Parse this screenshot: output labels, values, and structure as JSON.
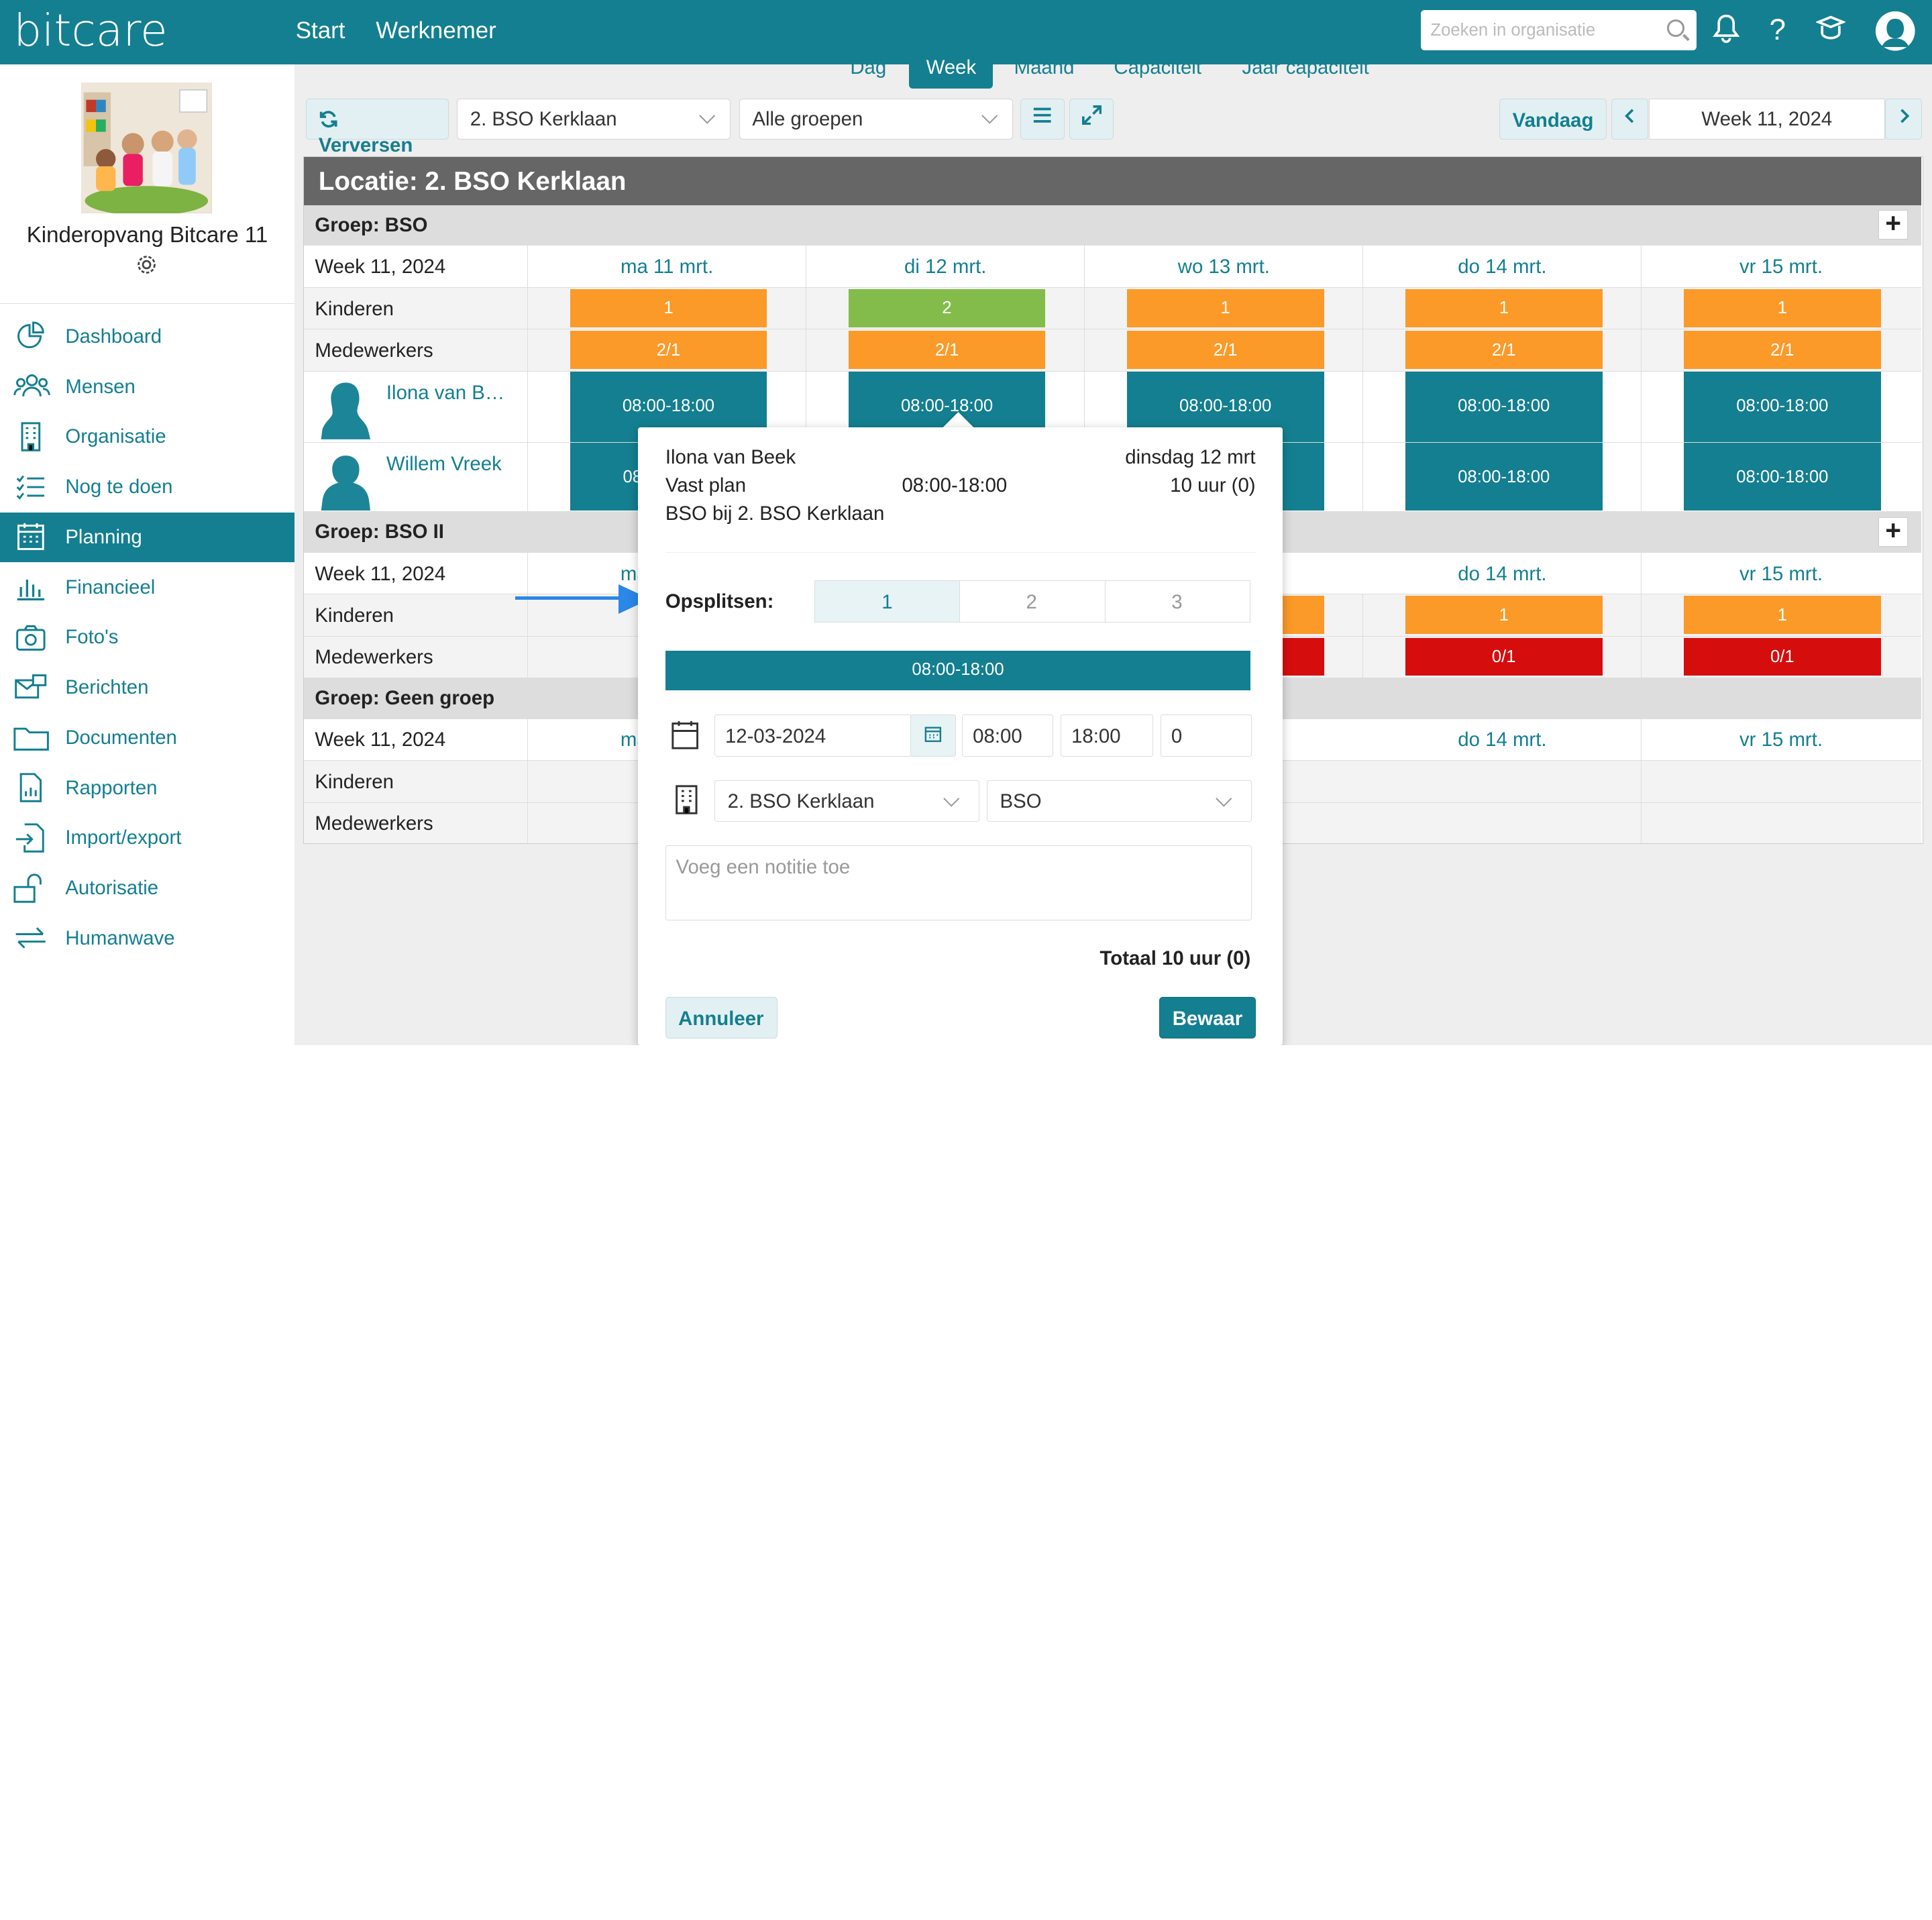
{
  "app": {
    "logo": "bitcare"
  },
  "topnav": {
    "start": "Start",
    "werknemer": "Werknemer",
    "search_placeholder": "Zoeken in organisatie",
    "help": "?"
  },
  "sidebar": {
    "org_name": "Kinderopvang Bitcare 11",
    "items": [
      {
        "label": "Dashboard",
        "icon": "pie-chart-icon"
      },
      {
        "label": "Mensen",
        "icon": "people-icon"
      },
      {
        "label": "Organisatie",
        "icon": "building-icon"
      },
      {
        "label": "Nog te doen",
        "icon": "checklist-icon"
      },
      {
        "label": "Planning",
        "icon": "calendar-icon",
        "active": true
      },
      {
        "label": "Financieel",
        "icon": "bar-chart-icon"
      },
      {
        "label": "Foto's",
        "icon": "camera-icon"
      },
      {
        "label": "Berichten",
        "icon": "messages-icon"
      },
      {
        "label": "Documenten",
        "icon": "folder-icon"
      },
      {
        "label": "Rapporten",
        "icon": "report-icon"
      },
      {
        "label": "Import/export",
        "icon": "import-icon"
      },
      {
        "label": "Autorisatie",
        "icon": "lock-icon"
      },
      {
        "label": "Humanwave",
        "icon": "swap-icon"
      }
    ]
  },
  "view_tabs": [
    "Dag",
    "Week",
    "Maand",
    "Capaciteit",
    "Jaar capaciteit"
  ],
  "toolbar": {
    "refresh": "Verversen",
    "location": "2. BSO Kerklaan",
    "groups": "Alle groepen",
    "today": "Vandaag",
    "week": "Week 11, 2024"
  },
  "grid": {
    "location_title": "Locatie: 2. BSO Kerklaan",
    "week_label": "Week 11, 2024",
    "days": [
      "ma 11 mrt.",
      "di 12 mrt.",
      "wo 13 mrt.",
      "do 14 mrt.",
      "vr 15 mrt."
    ],
    "row_kinderen": "Kinderen",
    "row_medewerkers": "Medewerkers",
    "groups": [
      {
        "title": "Groep: BSO",
        "kinderen": [
          "1",
          "2",
          "1",
          "1",
          "1"
        ],
        "medewerkers": [
          "2/1",
          "2/1",
          "2/1",
          "2/1",
          "2/1"
        ],
        "employees": [
          {
            "name": "Ilona van B…",
            "shifts": [
              "08:00-18:00",
              "08:00-18:00",
              "08:00-18:00",
              "08:00-18:00",
              "08:00-18:00"
            ]
          },
          {
            "name": "Willem Vreek",
            "shifts": [
              "08",
              "",
              "",
              "08:00-18:00",
              "08:00-18:00"
            ]
          }
        ]
      },
      {
        "title": "Groep: BSO II",
        "day_short": "ma",
        "kinderen": [
          "1",
          "1"
        ],
        "medewerkers": [
          "0/1",
          "0/1"
        ]
      },
      {
        "title": "Groep: Geen groep",
        "day_short": "ma"
      }
    ]
  },
  "popup": {
    "name": "Ilona van Beek",
    "date_long": "dinsdag 12 mrt",
    "plan": "Vast plan",
    "time": "08:00-18:00",
    "hours": "10 uur (0)",
    "where": "BSO bij 2. BSO Kerklaan",
    "split_label": "Opsplitsen:",
    "split_options": [
      "1",
      "2",
      "3"
    ],
    "bar": "08:00-18:00",
    "date": "12-03-2024",
    "start": "08:00",
    "end": "18:00",
    "break": "0",
    "location": "2. BSO Kerklaan",
    "group": "BSO",
    "note_placeholder": "Voeg een notitie toe",
    "total": "Totaal 10 uur (0)",
    "cancel": "Annuleer",
    "save": "Bewaar"
  },
  "colors": {
    "brand": "#137f90",
    "orange": "#fb9a28",
    "green": "#84bc4b",
    "red": "#d60d0d",
    "arrow": "#2b87e8"
  }
}
